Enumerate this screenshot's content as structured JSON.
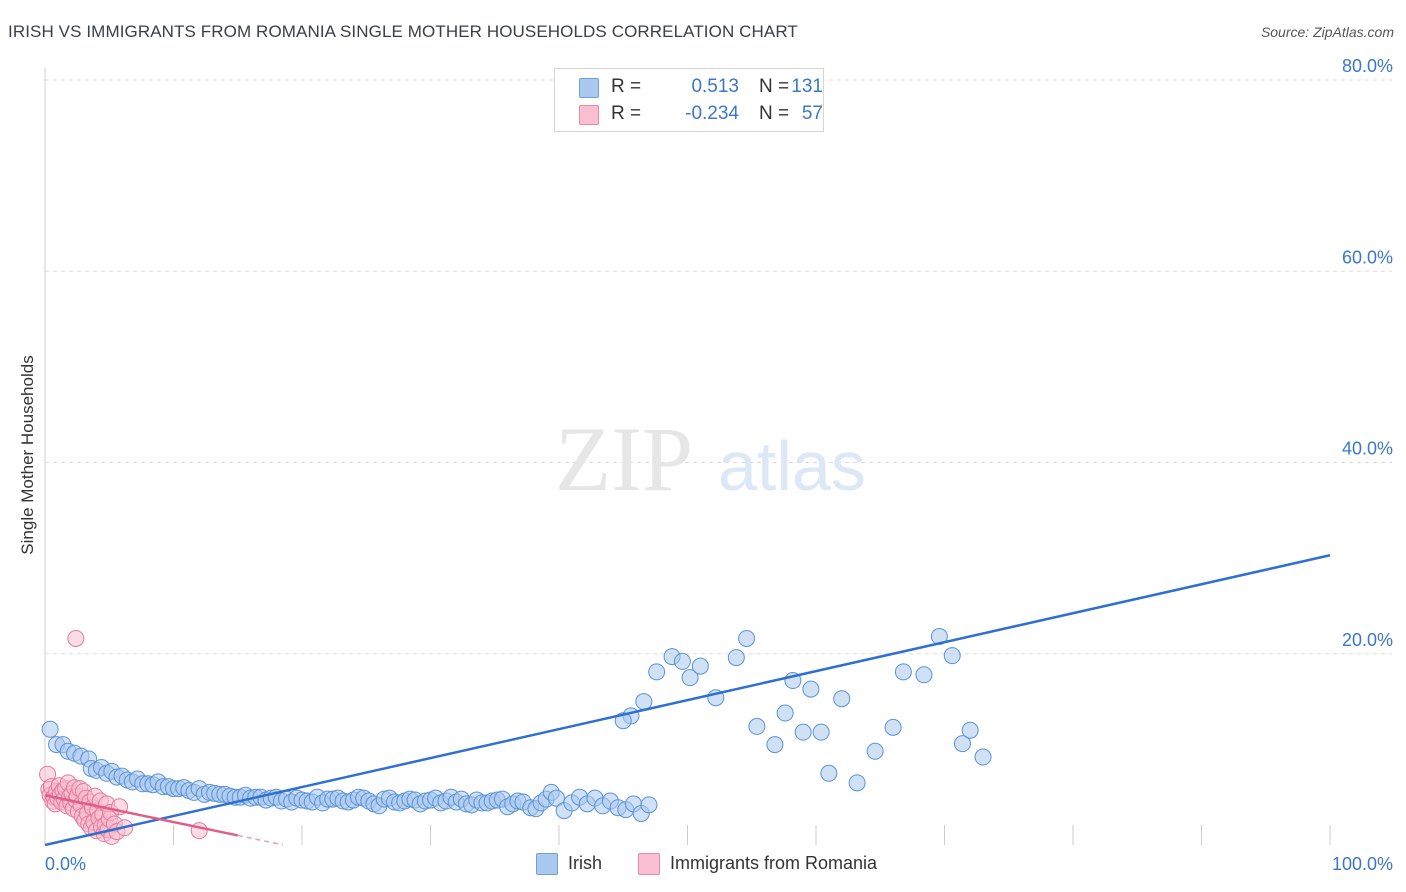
{
  "header": {
    "title": "IRISH VS IMMIGRANTS FROM ROMANIA SINGLE MOTHER HOUSEHOLDS CORRELATION CHART",
    "source": "Source: ZipAtlas.com"
  },
  "watermark": {
    "zip": "ZIP",
    "atlas": "atlas"
  },
  "legend": {
    "rows": [
      {
        "r_label": "R =",
        "r_value": "0.513",
        "n_label": "N =",
        "n_value": "131",
        "color": "#a9c9ef",
        "border": "#6f9fd8"
      },
      {
        "r_label": "R =",
        "r_value": "-0.234",
        "n_label": "N =",
        "n_value": "57",
        "color": "#f7bfd0",
        "border": "#e98aa8"
      }
    ]
  },
  "bottom_legend": [
    {
      "label": "Irish",
      "color": "#a9c9ef",
      "border": "#6f9fd8"
    },
    {
      "label": "Immigrants from Romania",
      "color": "#f7bfd0",
      "border": "#e98aa8"
    }
  ],
  "chart_data": {
    "type": "scatter",
    "title": "IRISH VS IMMIGRANTS FROM ROMANIA SINGLE MOTHER HOUSEHOLDS CORRELATION CHART",
    "xlabel": "",
    "ylabel": "Single Mother Households",
    "xlim": [
      0,
      100
    ],
    "ylim": [
      0,
      80
    ],
    "x_tick_labels": [
      "0.0%",
      "100.0%"
    ],
    "y_ticks": [
      20,
      40,
      60,
      80
    ],
    "y_tick_labels": [
      "20.0%",
      "40.0%",
      "60.0%",
      "80.0%"
    ],
    "grid": true,
    "legend_position": "top-center",
    "colors": {
      "irish_fill": "#a9c9ef",
      "irish_stroke": "#5b93d6",
      "irish_line": "#2f6fd0",
      "romania_fill": "#f7bfd0",
      "romania_stroke": "#e47a9c",
      "romania_line": "#e05c8a",
      "tick_label": "#3a78c9",
      "grid": "#dcdcdc"
    },
    "series": [
      {
        "name": "Irish",
        "r": 0.513,
        "n": 131,
        "trend": {
          "x": [
            0,
            100
          ],
          "y": [
            0.0,
            30.3
          ]
        },
        "points": [
          [
            0.4,
            12.1
          ],
          [
            0.9,
            10.5
          ],
          [
            1.4,
            10.5
          ],
          [
            1.8,
            9.8
          ],
          [
            2.3,
            9.6
          ],
          [
            2.8,
            9.3
          ],
          [
            3.4,
            9.0
          ],
          [
            3.6,
            8.0
          ],
          [
            4.0,
            7.8
          ],
          [
            4.4,
            8.1
          ],
          [
            4.8,
            7.5
          ],
          [
            5.2,
            7.7
          ],
          [
            5.6,
            7.1
          ],
          [
            6.0,
            7.2
          ],
          [
            6.4,
            6.8
          ],
          [
            6.8,
            6.6
          ],
          [
            7.2,
            6.9
          ],
          [
            7.6,
            6.4
          ],
          [
            8.0,
            6.4
          ],
          [
            8.4,
            6.3
          ],
          [
            8.8,
            6.6
          ],
          [
            9.2,
            6.1
          ],
          [
            9.6,
            6.1
          ],
          [
            10.0,
            5.9
          ],
          [
            10.4,
            5.9
          ],
          [
            10.8,
            6.0
          ],
          [
            11.2,
            5.7
          ],
          [
            11.6,
            5.5
          ],
          [
            12.0,
            5.9
          ],
          [
            12.4,
            5.3
          ],
          [
            12.8,
            5.5
          ],
          [
            13.2,
            5.4
          ],
          [
            13.6,
            5.3
          ],
          [
            14.0,
            5.3
          ],
          [
            14.4,
            5.1
          ],
          [
            14.8,
            5.0
          ],
          [
            15.2,
            5.0
          ],
          [
            15.6,
            5.2
          ],
          [
            16.0,
            4.9
          ],
          [
            16.4,
            5.0
          ],
          [
            16.8,
            5.0
          ],
          [
            17.2,
            4.7
          ],
          [
            17.6,
            4.9
          ],
          [
            18.0,
            5.0
          ],
          [
            18.4,
            4.6
          ],
          [
            18.8,
            4.8
          ],
          [
            19.2,
            4.5
          ],
          [
            19.6,
            4.9
          ],
          [
            20.0,
            4.7
          ],
          [
            20.4,
            4.6
          ],
          [
            20.8,
            4.5
          ],
          [
            21.2,
            5.0
          ],
          [
            21.6,
            4.4
          ],
          [
            22.0,
            4.8
          ],
          [
            22.4,
            4.8
          ],
          [
            22.8,
            4.9
          ],
          [
            23.2,
            4.6
          ],
          [
            23.6,
            4.5
          ],
          [
            24.0,
            4.7
          ],
          [
            24.4,
            5.0
          ],
          [
            24.8,
            4.9
          ],
          [
            25.2,
            4.6
          ],
          [
            25.6,
            4.3
          ],
          [
            26.0,
            4.1
          ],
          [
            26.4,
            4.8
          ],
          [
            26.8,
            4.9
          ],
          [
            27.2,
            4.5
          ],
          [
            27.6,
            4.4
          ],
          [
            28.0,
            4.6
          ],
          [
            28.4,
            4.8
          ],
          [
            28.8,
            4.7
          ],
          [
            29.2,
            4.3
          ],
          [
            29.6,
            4.6
          ],
          [
            30.0,
            4.7
          ],
          [
            30.4,
            4.9
          ],
          [
            30.8,
            4.4
          ],
          [
            31.2,
            4.6
          ],
          [
            31.6,
            5.0
          ],
          [
            32.0,
            4.5
          ],
          [
            32.4,
            4.8
          ],
          [
            32.8,
            4.3
          ],
          [
            33.2,
            4.2
          ],
          [
            33.6,
            4.7
          ],
          [
            34.0,
            4.4
          ],
          [
            34.4,
            4.4
          ],
          [
            34.8,
            4.6
          ],
          [
            35.2,
            4.7
          ],
          [
            35.6,
            4.8
          ],
          [
            36.0,
            4.0
          ],
          [
            36.4,
            4.3
          ],
          [
            36.8,
            4.6
          ],
          [
            37.2,
            4.5
          ],
          [
            37.8,
            3.9
          ],
          [
            38.2,
            3.8
          ],
          [
            38.6,
            4.4
          ],
          [
            39.0,
            4.8
          ],
          [
            39.4,
            5.5
          ],
          [
            39.8,
            4.9
          ],
          [
            40.4,
            3.6
          ],
          [
            41.0,
            4.4
          ],
          [
            41.6,
            5.0
          ],
          [
            42.2,
            4.3
          ],
          [
            42.8,
            4.9
          ],
          [
            43.4,
            4.1
          ],
          [
            44.0,
            4.6
          ],
          [
            44.6,
            3.9
          ],
          [
            45.2,
            3.7
          ],
          [
            45.8,
            4.3
          ],
          [
            46.4,
            3.3
          ],
          [
            47.0,
            4.2
          ],
          [
            45.6,
            13.5
          ],
          [
            45.0,
            13.0
          ],
          [
            46.6,
            15.0
          ],
          [
            47.6,
            18.1
          ],
          [
            48.8,
            19.7
          ],
          [
            49.6,
            19.2
          ],
          [
            50.2,
            17.5
          ],
          [
            51.0,
            18.7
          ],
          [
            52.2,
            15.4
          ],
          [
            53.8,
            19.6
          ],
          [
            54.6,
            21.6
          ],
          [
            55.4,
            12.4
          ],
          [
            56.8,
            10.5
          ],
          [
            57.6,
            13.8
          ],
          [
            58.2,
            17.2
          ],
          [
            59.0,
            11.8
          ],
          [
            59.6,
            16.3
          ],
          [
            60.4,
            11.8
          ],
          [
            61.0,
            7.5
          ],
          [
            62.0,
            15.3
          ],
          [
            63.2,
            6.5
          ],
          [
            64.6,
            9.8
          ],
          [
            66.0,
            12.3
          ],
          [
            66.8,
            18.1
          ],
          [
            68.4,
            17.8
          ],
          [
            69.6,
            21.8
          ],
          [
            70.6,
            19.8
          ],
          [
            71.4,
            10.6
          ],
          [
            72.0,
            12.0
          ],
          [
            73.0,
            9.2
          ]
        ]
      },
      {
        "name": "Immigrants from Romania",
        "r": -0.234,
        "n": 57,
        "trend": {
          "x": [
            0,
            15
          ],
          "y": [
            5.2,
            1.0
          ]
        },
        "points": [
          [
            0.2,
            7.4
          ],
          [
            0.3,
            5.8
          ],
          [
            0.4,
            5.2
          ],
          [
            0.5,
            6.1
          ],
          [
            0.6,
            4.6
          ],
          [
            0.7,
            5.0
          ],
          [
            0.8,
            4.3
          ],
          [
            0.9,
            5.6
          ],
          [
            1.0,
            4.9
          ],
          [
            1.1,
            6.2
          ],
          [
            1.2,
            5.3
          ],
          [
            1.3,
            4.5
          ],
          [
            1.4,
            5.7
          ],
          [
            1.5,
            4.8
          ],
          [
            1.6,
            5.9
          ],
          [
            1.7,
            4.1
          ],
          [
            1.8,
            6.5
          ],
          [
            1.9,
            5.0
          ],
          [
            2.0,
            4.4
          ],
          [
            2.1,
            5.4
          ],
          [
            2.2,
            3.8
          ],
          [
            2.3,
            6.0
          ],
          [
            2.4,
            4.7
          ],
          [
            2.5,
            5.1
          ],
          [
            2.6,
            3.5
          ],
          [
            2.7,
            5.9
          ],
          [
            2.8,
            4.2
          ],
          [
            2.9,
            3.0
          ],
          [
            3.0,
            5.6
          ],
          [
            3.1,
            2.6
          ],
          [
            3.2,
            4.9
          ],
          [
            3.3,
            3.3
          ],
          [
            3.4,
            2.2
          ],
          [
            3.5,
            4.5
          ],
          [
            3.6,
            1.8
          ],
          [
            3.7,
            3.9
          ],
          [
            3.8,
            2.4
          ],
          [
            3.9,
            5.1
          ],
          [
            4.0,
            1.5
          ],
          [
            4.1,
            3.6
          ],
          [
            4.2,
            2.8
          ],
          [
            4.3,
            4.6
          ],
          [
            4.4,
            1.9
          ],
          [
            4.5,
            3.2
          ],
          [
            4.6,
            1.2
          ],
          [
            4.7,
            2.1
          ],
          [
            4.8,
            4.3
          ],
          [
            4.9,
            1.6
          ],
          [
            5.0,
            2.7
          ],
          [
            5.1,
            3.4
          ],
          [
            5.2,
            0.9
          ],
          [
            5.4,
            2.2
          ],
          [
            5.6,
            1.4
          ],
          [
            5.8,
            4.0
          ],
          [
            6.2,
            1.8
          ],
          [
            12.0,
            1.5
          ],
          [
            2.4,
            21.6
          ]
        ]
      }
    ]
  }
}
